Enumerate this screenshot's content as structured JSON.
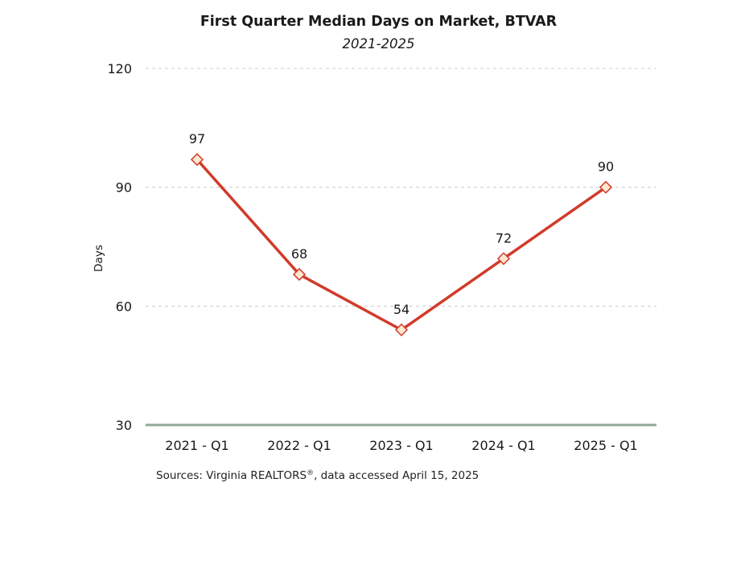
{
  "chart_data": {
    "type": "line",
    "title": "First Quarter Median Days on Market, BTVAR",
    "subtitle": "2021-2025",
    "xlabel": "",
    "ylabel": "Days",
    "categories": [
      "2021 - Q1",
      "2022 - Q1",
      "2023 - Q1",
      "2024 - Q1",
      "2025 - Q1"
    ],
    "series": [
      {
        "values": [
          97,
          68,
          54,
          72,
          90
        ],
        "labels": [
          "97",
          "68",
          "54",
          "72",
          "90"
        ],
        "color": "#d13b2a",
        "marker_fill": "#fbe7cf"
      }
    ],
    "ylim": [
      30,
      120
    ],
    "yticks": [
      30,
      60,
      90,
      120
    ],
    "ytick_labels": [
      "30",
      "60",
      "90",
      "120"
    ],
    "grid": true,
    "grid_color": "#cccccc",
    "baseline_color": "#8fa89a",
    "legend": "none"
  },
  "footer": {
    "source_prefix": "Sources: Virginia REALTORS",
    "source_mark": "®",
    "source_suffix": ", data accessed April 15, 2025"
  }
}
